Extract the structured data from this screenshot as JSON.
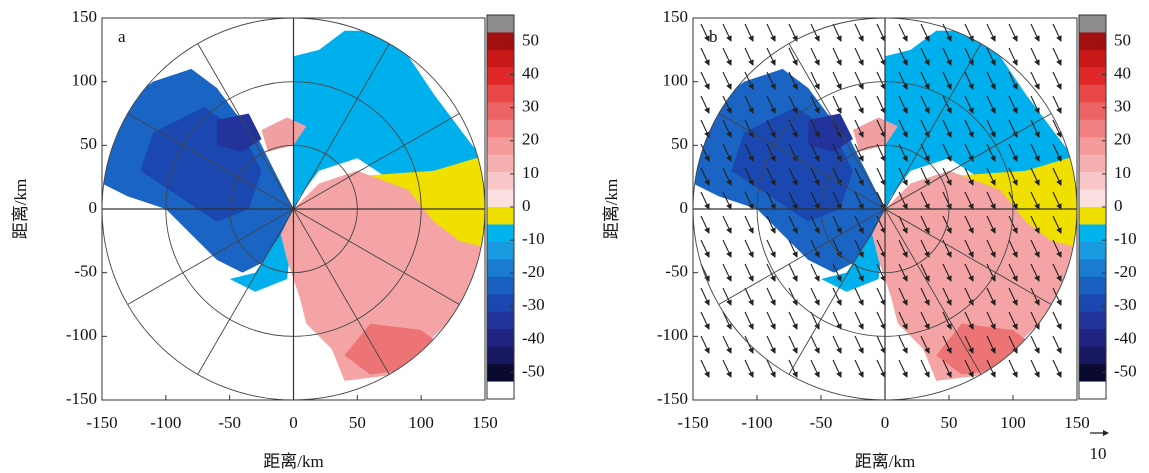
{
  "chart_data": [
    {
      "type": "heatmap",
      "panel_label": "a",
      "xlabel": "距离/km",
      "ylabel": "距离/km",
      "xlim": [
        -150,
        150
      ],
      "ylim": [
        -150,
        150
      ],
      "xticks": [
        -150,
        -100,
        -50,
        0,
        50,
        100,
        150
      ],
      "yticks": [
        -150,
        -100,
        -50,
        0,
        50,
        100,
        150
      ],
      "colorbar": {
        "lim": [
          -58,
          58
        ],
        "ticks": [
          50,
          40,
          30,
          20,
          10,
          0,
          -10,
          -20,
          -30,
          -40,
          -50
        ],
        "colors": [
          "#8c8c8c",
          "#a01010",
          "#c81818",
          "#e02828",
          "#e84848",
          "#ec6464",
          "#f08080",
          "#f49a9a",
          "#f6b0b0",
          "#f8c8c8",
          "#fbe0e0",
          "#f0e000",
          "#00b4ee",
          "#1a9ae0",
          "#1a7cd0",
          "#1a60c0",
          "#1a48b0",
          "#22349c",
          "#1e2480",
          "#181860",
          "#0a0a30",
          "#ffffff"
        ]
      }
    },
    {
      "type": "heatmap",
      "panel_label": "b",
      "xlabel": "距离/km",
      "ylabel": "距离/km",
      "xlim": [
        -150,
        150
      ],
      "ylim": [
        -150,
        150
      ],
      "xticks": [
        -150,
        -100,
        -50,
        0,
        50,
        100,
        150
      ],
      "yticks": [
        -150,
        -100,
        -50,
        0,
        50,
        100,
        150
      ],
      "colorbar": {
        "lim": [
          -58,
          58
        ],
        "ticks": [
          50,
          40,
          30,
          20,
          10,
          0,
          -10,
          -20,
          -30,
          -40,
          -50
        ],
        "colors": [
          "#8c8c8c",
          "#a01010",
          "#c81818",
          "#e02828",
          "#e84848",
          "#ec6464",
          "#f08080",
          "#f49a9a",
          "#f6b0b0",
          "#f8c8c8",
          "#fbe0e0",
          "#f0e000",
          "#00b4ee",
          "#1a9ae0",
          "#1a7cd0",
          "#1a60c0",
          "#1a48b0",
          "#22349c",
          "#1e2480",
          "#181860",
          "#0a0a30",
          "#ffffff"
        ]
      },
      "vector_key": 10
    }
  ]
}
